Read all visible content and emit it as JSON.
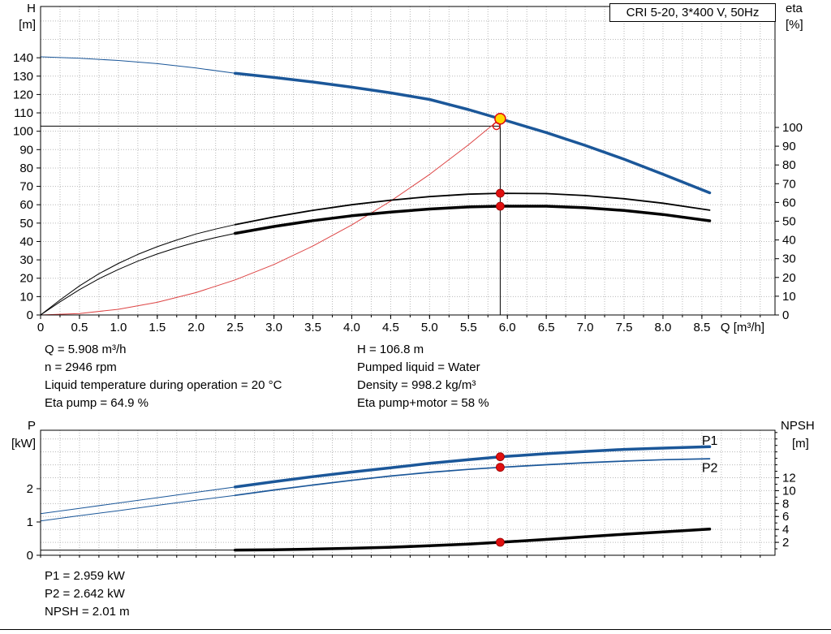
{
  "title_box": {
    "label": "CRI 5-20, 3*400 V, 50Hz"
  },
  "top_chart": {
    "left_axis_title": "H",
    "left_axis_unit": "[m]",
    "right_axis_title": "eta",
    "right_axis_unit": "[%]"
  },
  "bottom_chart": {
    "left_axis_title": "P",
    "left_axis_unit": "[kW]",
    "right_axis_title": "NPSH",
    "right_axis_unit": "[m]"
  },
  "operating_point_info": {
    "left": [
      "Q = 5.908 m³/h",
      "n = 2946 rpm",
      "Liquid temperature during operation = 20 °C",
      "Eta pump = 64.9 %"
    ],
    "right": [
      "H = 106.8 m",
      "Pumped liquid = Water",
      "Density = 998.2 kg/m³",
      "Eta pump+motor = 58 %"
    ]
  },
  "power_info": [
    "P1 = 2.959 kW",
    "P2 = 2.642 kW",
    "NPSH = 2.01 m"
  ],
  "colors": {
    "curve_blue": "#1b5799",
    "curve_black": "#000000",
    "system_red": "#dd4444",
    "marker_red": "#e01010",
    "marker_red_edge": "#990000",
    "duty_yellow": "#ffd800",
    "grid": "#b8b8b8"
  },
  "chart_data": [
    {
      "id": "top",
      "type": "line",
      "title": "CRI 5-20, 3*400 V, 50Hz",
      "x": {
        "label": "Q [m³/h]",
        "min": 0,
        "max": 9.44,
        "minor_step": 0.25,
        "tick_values": [
          0,
          0.5,
          1,
          1.5,
          2,
          2.5,
          3,
          3.5,
          4,
          4.5,
          5,
          5.5,
          6,
          6.5,
          7,
          7.5,
          8,
          8.5
        ],
        "tick_labels": [
          "0",
          "0.5",
          "1.0",
          "1.5",
          "2.0",
          "2.5",
          "3.0",
          "3.5",
          "4.0",
          "4.5",
          "5.0",
          "5.5",
          "6.0",
          "6.5",
          "7.0",
          "7.5",
          "8.0",
          "8.5"
        ]
      },
      "y_left": {
        "min": 0,
        "max": 167.9,
        "tick_values": [
          0,
          10,
          20,
          30,
          40,
          50,
          60,
          70,
          80,
          90,
          100,
          110,
          120,
          130,
          140
        ],
        "tick_labels": [
          "0",
          "10",
          "20",
          "30",
          "40",
          "50",
          "60",
          "70",
          "80",
          "90",
          "100",
          "110",
          "120",
          "130",
          "140"
        ]
      },
      "y_right": {
        "min": 0,
        "max": 164.5,
        "tick_values": [
          0,
          10,
          20,
          30,
          40,
          50,
          60,
          70,
          80,
          90,
          100
        ],
        "tick_labels": [
          "0",
          "10",
          "20",
          "30",
          "40",
          "50",
          "60",
          "70",
          "80",
          "90",
          "100"
        ]
      },
      "grid": {
        "h_axis": "left",
        "h_values": [
          10,
          20,
          30,
          40,
          50,
          60,
          70,
          80,
          90,
          100,
          110,
          120,
          130,
          140,
          150,
          160
        ],
        "v_step": 0.25
      },
      "series": [
        {
          "name": "head-curve-ext",
          "color": "blue",
          "width": 1,
          "axis": "left",
          "points": [
            [
              0,
              140.5
            ],
            [
              0.5,
              139.7
            ],
            [
              1,
              138.5
            ],
            [
              1.5,
              136.8
            ],
            [
              2,
              134.4
            ],
            [
              2.5,
              131.6
            ]
          ]
        },
        {
          "name": "head-curve",
          "color": "blue",
          "width": 3.5,
          "axis": "left",
          "points": [
            [
              2.5,
              131.6
            ],
            [
              3,
              129.3
            ],
            [
              3.5,
              126.8
            ],
            [
              4,
              124.0
            ],
            [
              4.5,
              120.9
            ],
            [
              5,
              117.3
            ],
            [
              5.5,
              111.8
            ],
            [
              6,
              105.6
            ],
            [
              6.5,
              99.3
            ],
            [
              7,
              92.3
            ],
            [
              7.5,
              84.8
            ],
            [
              8,
              76.6
            ],
            [
              8.6,
              66.5
            ]
          ]
        },
        {
          "name": "system-curve",
          "color": "red",
          "width": 1,
          "axis": "left",
          "points": [
            [
              0,
              0
            ],
            [
              0.5,
              0.8
            ],
            [
              1,
              3.1
            ],
            [
              1.5,
              6.9
            ],
            [
              2,
              12.2
            ],
            [
              2.5,
              19.1
            ],
            [
              3,
              27.5
            ],
            [
              3.5,
              37.5
            ],
            [
              4,
              49.0
            ],
            [
              4.5,
              62.0
            ],
            [
              5,
              76.5
            ],
            [
              5.5,
              92.6
            ],
            [
              5.908,
              106.8
            ]
          ]
        },
        {
          "name": "eta-pump-ext",
          "color": "black",
          "width": 1,
          "axis": "right",
          "points": [
            [
              0,
              0
            ],
            [
              0.25,
              8
            ],
            [
              0.5,
              15.5
            ],
            [
              0.75,
              22
            ],
            [
              1,
              27.5
            ],
            [
              1.25,
              32.3
            ],
            [
              1.5,
              36.4
            ],
            [
              1.75,
              40
            ],
            [
              2,
              43.2
            ],
            [
              2.25,
              45.8
            ],
            [
              2.5,
              48.2
            ]
          ]
        },
        {
          "name": "eta-pump",
          "color": "black",
          "width": 1.8,
          "axis": "right",
          "points": [
            [
              2.5,
              48.2
            ],
            [
              3,
              52.3
            ],
            [
              3.5,
              55.8
            ],
            [
              4,
              58.8
            ],
            [
              4.5,
              61.2
            ],
            [
              5,
              63.1
            ],
            [
              5.5,
              64.4
            ],
            [
              5.908,
              64.9
            ],
            [
              6.5,
              64.7
            ],
            [
              7,
              63.7
            ],
            [
              7.5,
              62.0
            ],
            [
              8,
              59.6
            ],
            [
              8.6,
              55.9
            ]
          ]
        },
        {
          "name": "eta-pump-motor-ext",
          "color": "black",
          "width": 1,
          "axis": "right",
          "points": [
            [
              0,
              0
            ],
            [
              0.25,
              7
            ],
            [
              0.5,
              13.5
            ],
            [
              0.75,
              19.3
            ],
            [
              1,
              24.3
            ],
            [
              1.25,
              28.7
            ],
            [
              1.5,
              32.5
            ],
            [
              1.75,
              35.9
            ],
            [
              2,
              38.8
            ],
            [
              2.25,
              41.3
            ],
            [
              2.5,
              43.5
            ]
          ]
        },
        {
          "name": "eta-pump-motor",
          "color": "black",
          "width": 3.5,
          "axis": "right",
          "points": [
            [
              2.5,
              43.5
            ],
            [
              3,
              47.2
            ],
            [
              3.5,
              50.3
            ],
            [
              4,
              52.9
            ],
            [
              4.5,
              54.9
            ],
            [
              5,
              56.5
            ],
            [
              5.5,
              57.6
            ],
            [
              5.908,
              58.0
            ],
            [
              6.5,
              58.0
            ],
            [
              7,
              57.2
            ],
            [
              7.5,
              55.7
            ],
            [
              8,
              53.6
            ],
            [
              8.6,
              50.2
            ]
          ]
        }
      ],
      "crosshair": {
        "q": 5.908,
        "v_top": 106.8,
        "h_value": 102.8
      },
      "markers": [
        {
          "name": "duty-point",
          "q": 5.908,
          "v": 106.8,
          "axis": "left",
          "style": "duty"
        },
        {
          "name": "requested-point",
          "q": 5.86,
          "v": 102.8,
          "axis": "left",
          "style": "open"
        },
        {
          "name": "eta-pump-point",
          "q": 5.908,
          "v": 64.9,
          "axis": "right",
          "style": "dot"
        },
        {
          "name": "eta-pump-motor-point",
          "q": 5.908,
          "v": 58,
          "axis": "right",
          "style": "dot"
        }
      ],
      "series_labels": []
    },
    {
      "id": "bottom",
      "type": "line",
      "title": "Power and NPSH curves",
      "x": {
        "label": "",
        "min": 0,
        "max": 9.44,
        "minor_step": 0.25,
        "tick_values": [],
        "tick_labels": []
      },
      "y_left": {
        "min": 0,
        "max": 3.756,
        "tick_values": [
          0,
          1,
          2
        ],
        "tick_labels": [
          "0",
          "1",
          "2"
        ]
      },
      "y_right": {
        "min": 0,
        "max": 19.35,
        "minor_step": 1,
        "tick_values": [
          2,
          4,
          6,
          8,
          10,
          12
        ],
        "tick_labels": [
          "2",
          "4",
          "6",
          "8",
          "10",
          "12"
        ]
      },
      "grid": {
        "h_axis": "right",
        "h_values": [
          2,
          4,
          6,
          8,
          10,
          12,
          14,
          16,
          18
        ],
        "v_step": 0.25
      },
      "series": [
        {
          "name": "p1-curve-ext",
          "color": "blue",
          "width": 1,
          "axis": "left",
          "points": [
            [
              0,
              1.25
            ],
            [
              0.5,
              1.41
            ],
            [
              1,
              1.57
            ],
            [
              1.5,
              1.73
            ],
            [
              2,
              1.89
            ],
            [
              2.5,
              2.05
            ]
          ]
        },
        {
          "name": "p1-curve",
          "color": "blue",
          "width": 3.5,
          "axis": "left",
          "points": [
            [
              2.5,
              2.05
            ],
            [
              3,
              2.21
            ],
            [
              3.5,
              2.36
            ],
            [
              4,
              2.5
            ],
            [
              4.5,
              2.63
            ],
            [
              5,
              2.76
            ],
            [
              5.5,
              2.87
            ],
            [
              5.908,
              2.959
            ],
            [
              6.5,
              3.05
            ],
            [
              7,
              3.12
            ],
            [
              7.5,
              3.18
            ],
            [
              8,
              3.22
            ],
            [
              8.6,
              3.26
            ]
          ]
        },
        {
          "name": "p2-curve-ext",
          "color": "blue",
          "width": 1,
          "axis": "left",
          "points": [
            [
              0,
              1.03
            ],
            [
              0.5,
              1.19
            ],
            [
              1,
              1.34
            ],
            [
              1.5,
              1.5
            ],
            [
              2,
              1.65
            ],
            [
              2.5,
              1.8
            ]
          ]
        },
        {
          "name": "p2-curve",
          "color": "blue",
          "width": 1.7,
          "axis": "left",
          "points": [
            [
              2.5,
              1.8
            ],
            [
              3,
              1.96
            ],
            [
              3.5,
              2.11
            ],
            [
              4,
              2.25
            ],
            [
              4.5,
              2.38
            ],
            [
              5,
              2.49
            ],
            [
              5.5,
              2.58
            ],
            [
              5.908,
              2.642
            ],
            [
              6.5,
              2.72
            ],
            [
              7,
              2.78
            ],
            [
              7.5,
              2.83
            ],
            [
              8,
              2.87
            ],
            [
              8.6,
              2.9
            ]
          ]
        },
        {
          "name": "npsh-curve-ext",
          "color": "black",
          "width": 1,
          "axis": "right",
          "points": [
            [
              0,
              0.78
            ],
            [
              1.25,
              0.79
            ],
            [
              2.5,
              0.8
            ]
          ]
        },
        {
          "name": "npsh-curve",
          "color": "black",
          "width": 3.5,
          "axis": "right",
          "points": [
            [
              2.5,
              0.8
            ],
            [
              3,
              0.85
            ],
            [
              3.5,
              0.95
            ],
            [
              4,
              1.08
            ],
            [
              4.5,
              1.25
            ],
            [
              5,
              1.47
            ],
            [
              5.5,
              1.72
            ],
            [
              5.908,
              2.01
            ],
            [
              6.5,
              2.45
            ],
            [
              7,
              2.85
            ],
            [
              7.5,
              3.25
            ],
            [
              8,
              3.62
            ],
            [
              8.6,
              4.05
            ]
          ]
        }
      ],
      "markers": [
        {
          "name": "p1-point",
          "q": 5.908,
          "v": 2.959,
          "axis": "left",
          "style": "dot"
        },
        {
          "name": "p2-point",
          "q": 5.908,
          "v": 2.642,
          "axis": "left",
          "style": "dot"
        },
        {
          "name": "npsh-point",
          "q": 5.908,
          "v": 2.01,
          "axis": "right",
          "style": "dot"
        }
      ],
      "series_labels": [
        {
          "text": "P1",
          "q": 8.5,
          "v": 3.32,
          "axis": "left"
        },
        {
          "text": "P2",
          "q": 8.5,
          "v": 2.5,
          "axis": "left"
        }
      ]
    }
  ]
}
